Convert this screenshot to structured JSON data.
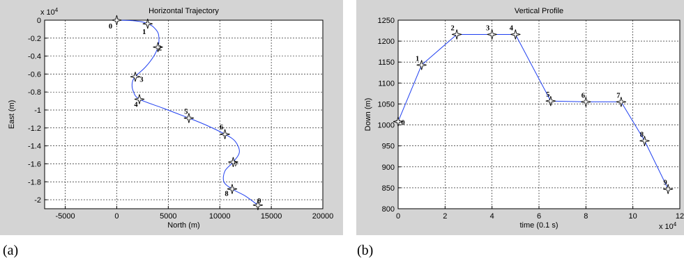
{
  "figure_labels": [
    "(a)",
    "(b)"
  ],
  "chart_data": [
    {
      "type": "line",
      "title": "Horizontal Trajectory",
      "xlabel": "North (m)",
      "ylabel": "East (m)",
      "xlim": [
        -7000,
        20000
      ],
      "ylim": [
        -21000,
        0
      ],
      "y_multiplier": "x 10^4",
      "xticks": [
        -5000,
        0,
        5000,
        10000,
        15000,
        20000
      ],
      "xtick_labels": [
        "-5000",
        "0",
        "5000",
        "10000",
        "15000",
        "20000"
      ],
      "yticks": [
        0,
        -2000,
        -4000,
        -6000,
        -8000,
        -10000,
        -12000,
        -14000,
        -16000,
        -18000,
        -20000
      ],
      "ytick_labels": [
        "0",
        "-0.2",
        "-0.4",
        "-0.6",
        "-0.8",
        "-1",
        "-1.2",
        "-1.4",
        "-1.6",
        "-1.8",
        "-2"
      ],
      "grid": true,
      "waypoint_labels": [
        "0",
        "1",
        "2",
        "3",
        "4",
        "5",
        "6",
        "7",
        "8",
        "9"
      ],
      "waypoints": [
        {
          "x": 0,
          "y": 0
        },
        {
          "x": 3000,
          "y": -400
        },
        {
          "x": 4000,
          "y": -3000
        },
        {
          "x": 1800,
          "y": -6300
        },
        {
          "x": 2200,
          "y": -8800
        },
        {
          "x": 7000,
          "y": -10900
        },
        {
          "x": 10500,
          "y": -12700
        },
        {
          "x": 11300,
          "y": -15800
        },
        {
          "x": 11200,
          "y": -18800
        },
        {
          "x": 13700,
          "y": -20600
        }
      ],
      "path": [
        {
          "x": 0,
          "y": 0
        },
        {
          "x": 1500,
          "y": -50
        },
        {
          "x": 2500,
          "y": -200
        },
        {
          "x": 3000,
          "y": -400
        },
        {
          "x": 3500,
          "y": -700
        },
        {
          "x": 4000,
          "y": -1400
        },
        {
          "x": 4100,
          "y": -2200
        },
        {
          "x": 4000,
          "y": -3000
        },
        {
          "x": 3600,
          "y": -4000
        },
        {
          "x": 2800,
          "y": -5200
        },
        {
          "x": 1800,
          "y": -6300
        },
        {
          "x": 1500,
          "y": -7000
        },
        {
          "x": 1600,
          "y": -7900
        },
        {
          "x": 2200,
          "y": -8800
        },
        {
          "x": 4500,
          "y": -9800
        },
        {
          "x": 7000,
          "y": -10900
        },
        {
          "x": 8700,
          "y": -11700
        },
        {
          "x": 10500,
          "y": -12700
        },
        {
          "x": 11500,
          "y": -13500
        },
        {
          "x": 11900,
          "y": -14700
        },
        {
          "x": 11300,
          "y": -15800
        },
        {
          "x": 10500,
          "y": -16800
        },
        {
          "x": 10400,
          "y": -18000
        },
        {
          "x": 11200,
          "y": -18800
        },
        {
          "x": 12500,
          "y": -19600
        },
        {
          "x": 13700,
          "y": -20600
        }
      ]
    },
    {
      "type": "line",
      "title": "Vertical Profile",
      "xlabel": "time (0.1 s)",
      "ylabel": "Down (m)",
      "xlim": [
        0,
        12
      ],
      "ylim": [
        800,
        1250
      ],
      "x_multiplier": "x 10^4",
      "xticks": [
        0,
        2,
        4,
        6,
        8,
        10,
        12
      ],
      "xtick_labels": [
        "0",
        "2",
        "4",
        "6",
        "8",
        "10",
        "12"
      ],
      "yticks": [
        800,
        850,
        900,
        950,
        1000,
        1050,
        1100,
        1150,
        1200,
        1250
      ],
      "ytick_labels": [
        "800",
        "850",
        "900",
        "950",
        "1000",
        "1050",
        "1100",
        "1150",
        "1200",
        "1250"
      ],
      "grid": true,
      "waypoint_labels": [
        "0",
        "1",
        "2",
        "3",
        "4",
        "5",
        "6",
        "7",
        "8",
        "9"
      ],
      "waypoints": [
        {
          "x": 0,
          "y": 1008
        },
        {
          "x": 1,
          "y": 1143
        },
        {
          "x": 2.5,
          "y": 1216
        },
        {
          "x": 4,
          "y": 1216
        },
        {
          "x": 5,
          "y": 1216
        },
        {
          "x": 6.5,
          "y": 1057
        },
        {
          "x": 8,
          "y": 1055
        },
        {
          "x": 9.5,
          "y": 1055
        },
        {
          "x": 10.5,
          "y": 962
        },
        {
          "x": 11.5,
          "y": 847
        }
      ]
    }
  ]
}
